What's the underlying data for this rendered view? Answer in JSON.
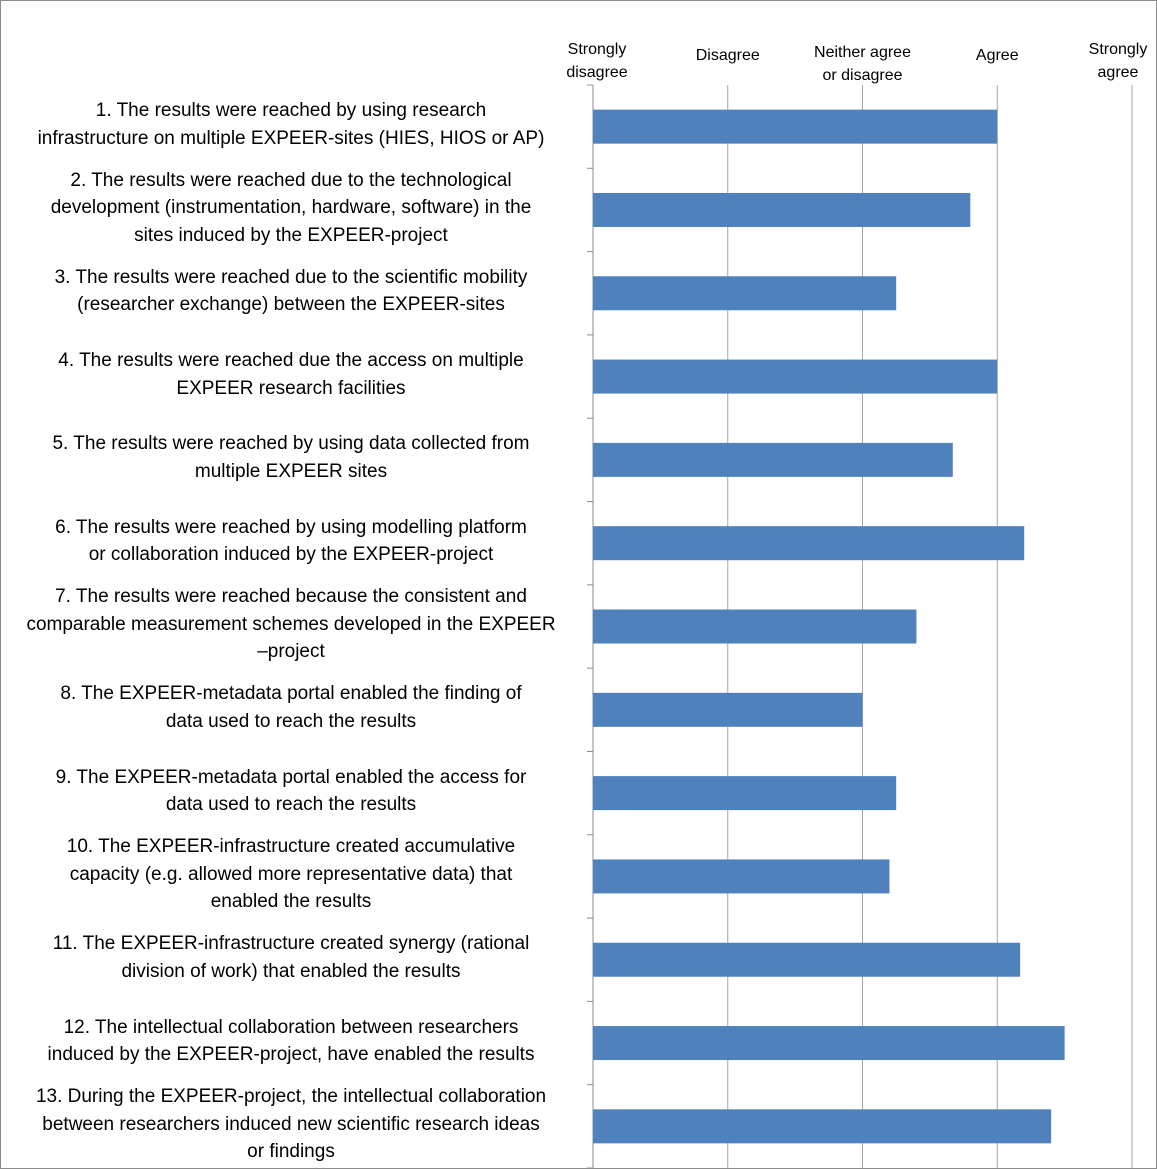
{
  "chart_data": {
    "type": "bar",
    "orientation": "horizontal",
    "x_tick_labels": [
      "Strongly\ndisagree",
      "Disagree",
      "Neither agree\nor disagree",
      "Agree",
      "Strongly\nagree"
    ],
    "xlim": [
      1,
      5
    ],
    "x_axis_position": "top",
    "grid": "vertical",
    "legend": "none",
    "bar_color": "#4f81bd",
    "categories": [
      "1.     The results were reached by using research\ninfrastructure on multiple EXPEER-sites (HIES, HIOS or AP)",
      "2.     The results were reached due to the technological\ndevelopment (instrumentation, hardware, software) in the\nsites induced by the EXPEER-project",
      "3.     The results were reached due to the scientific mobility\n(researcher exchange) between the EXPEER-sites",
      "4.     The results were reached due the access on multiple\nEXPEER research facilities",
      "5.     The results were reached by using data collected from\nmultiple EXPEER sites",
      "6.     The results were reached by using modelling platform\nor collaboration induced by the EXPEER-project",
      "7.     The results were reached because the consistent and\ncomparable measurement schemes developed in the EXPEER\n–project",
      "8.     The EXPEER-metadata portal enabled the finding of\ndata used to reach the results",
      "9.     The EXPEER-metadata portal enabled the access for\ndata used to reach the results",
      "10.   The EXPEER-infrastructure created accumulative\ncapacity (e.g. allowed more representative data) that\nenabled the results",
      "11.   The EXPEER-infrastructure created synergy (rational\ndivision of work) that enabled the results",
      "12.   The intellectual collaboration between researchers\ninduced by the EXPEER-project, have enabled the results",
      "13.  During the EXPEER-project, the intellectual collaboration\nbetween researchers induced new scientific research ideas\nor findings"
    ],
    "values": [
      4.0,
      3.8,
      3.25,
      4.0,
      3.67,
      4.2,
      3.4,
      3.0,
      3.25,
      3.2,
      4.17,
      4.5,
      4.4
    ]
  }
}
